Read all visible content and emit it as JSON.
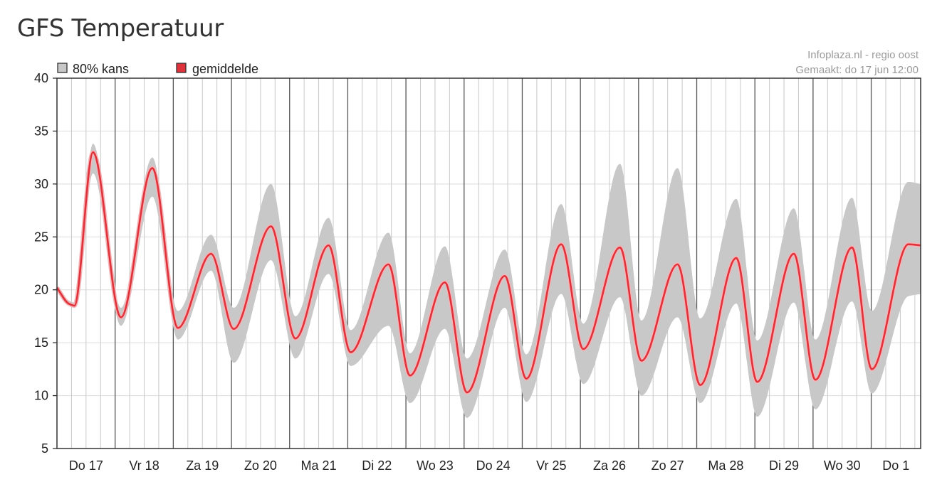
{
  "page": {
    "title": "GFS Temperatuur"
  },
  "legend": {
    "band_label": "80% kans",
    "mean_label": "gemiddelde"
  },
  "source": {
    "line1": "Infoplaza.nl - regio oost",
    "line2": "Gemaakt: do 17 jun 12:00"
  },
  "colors": {
    "band": "#c8c8c8",
    "mean": "#e0323a",
    "mean_halo": "#f4b5b8",
    "major_grid": "#555555",
    "minor_grid": "#c8c8c8",
    "h_grid": "#dddddd",
    "axis": "#333333"
  },
  "chart_data": {
    "type": "area",
    "title": "GFS Temperatuur",
    "xlabel": "",
    "ylabel": "",
    "ylim": [
      5,
      40
    ],
    "yticks": [
      5,
      10,
      15,
      20,
      25,
      30,
      35,
      40
    ],
    "x_unit": "days",
    "xlim": [
      0,
      14.85
    ],
    "day_labels": [
      "Do 17",
      "Vr 18",
      "Za 19",
      "Zo 20",
      "Ma 21",
      "Di 22",
      "Wo 23",
      "Do 24",
      "Vr 25",
      "Za 26",
      "Zo 27",
      "Ma 28",
      "Di 29",
      "Wo 30",
      "Do 1"
    ],
    "grid": true,
    "legend_position": "top-left",
    "series": [
      {
        "name": "gemiddelde",
        "x": [
          0,
          0.2,
          0.3,
          0.62,
          1.1,
          1.64,
          2.08,
          2.65,
          3.04,
          3.68,
          4.1,
          4.67,
          5.05,
          5.7,
          6.07,
          6.67,
          7.05,
          7.7,
          8.07,
          8.67,
          9.05,
          9.68,
          10.05,
          10.67,
          11.06,
          11.68,
          12.04,
          12.67,
          13.04,
          13.67,
          14.01,
          14.64,
          14.85
        ],
        "values": [
          20.2,
          18.7,
          18.5,
          33.0,
          17.4,
          31.5,
          16.4,
          23.4,
          16.3,
          26.0,
          15.4,
          24.2,
          14.1,
          22.4,
          11.9,
          20.7,
          10.3,
          21.3,
          11.6,
          24.3,
          14.4,
          24.0,
          13.3,
          22.4,
          11.0,
          23.0,
          11.3,
          23.4,
          11.5,
          24.0,
          12.5,
          24.3,
          24.2
        ]
      },
      {
        "name": "80% kans (boven)",
        "x": [
          0,
          0.2,
          0.3,
          0.62,
          1.1,
          1.64,
          2.08,
          2.65,
          3.04,
          3.68,
          4.1,
          4.67,
          5.05,
          5.7,
          6.07,
          6.67,
          7.05,
          7.7,
          8.07,
          8.67,
          9.05,
          9.68,
          10.05,
          10.67,
          11.06,
          11.68,
          12.04,
          12.67,
          13.04,
          13.67,
          14.01,
          14.64,
          14.85
        ],
        "values": [
          20.4,
          19.0,
          18.8,
          33.8,
          18.3,
          32.5,
          18.0,
          25.2,
          18.3,
          30.0,
          17.5,
          26.8,
          16.2,
          25.4,
          14.0,
          24.1,
          13.5,
          23.8,
          13.9,
          28.1,
          16.8,
          31.9,
          17.1,
          31.5,
          17.3,
          28.6,
          15.2,
          27.7,
          15.3,
          28.7,
          18.0,
          30.2,
          30.0
        ]
      },
      {
        "name": "80% kans (onder)",
        "x": [
          0,
          0.2,
          0.3,
          0.62,
          1.1,
          1.64,
          2.08,
          2.65,
          3.04,
          3.68,
          4.1,
          4.67,
          5.05,
          5.7,
          6.07,
          6.67,
          7.05,
          7.7,
          8.07,
          8.67,
          9.05,
          9.68,
          10.05,
          10.67,
          11.06,
          11.68,
          12.04,
          12.67,
          13.04,
          13.67,
          14.01,
          14.64,
          14.85
        ],
        "values": [
          20.0,
          18.5,
          18.3,
          31.0,
          16.6,
          28.8,
          15.3,
          21.8,
          13.1,
          22.8,
          13.5,
          21.5,
          12.8,
          16.6,
          9.3,
          16.3,
          7.9,
          18.3,
          9.4,
          19.6,
          11.1,
          19.3,
          10.0,
          17.4,
          9.3,
          18.7,
          8.0,
          18.8,
          8.7,
          18.9,
          10.2,
          19.4,
          19.6
        ]
      }
    ]
  }
}
